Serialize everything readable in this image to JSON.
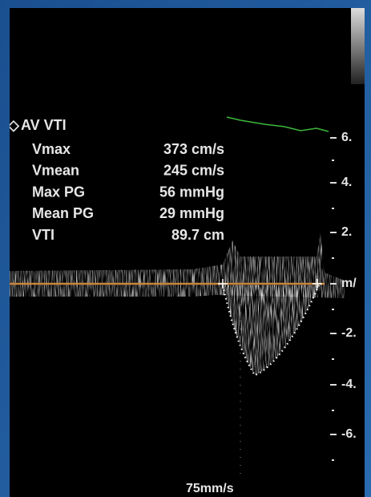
{
  "measurement": {
    "title": "AV VTI",
    "rows": [
      [
        "Vmax",
        "373 cm/s"
      ],
      [
        "Vmean",
        "245 cm/s"
      ],
      [
        "Max PG",
        "56 mmHg"
      ],
      [
        "Mean PG",
        "29 mmHg"
      ],
      [
        "VTI",
        "89.7 cm"
      ]
    ]
  },
  "scale": {
    "labels": [
      "6.",
      "4.",
      "2.",
      "m/",
      "-2.",
      "-4.",
      "-6."
    ]
  },
  "footer": {
    "sweep": "75mm/s"
  }
}
